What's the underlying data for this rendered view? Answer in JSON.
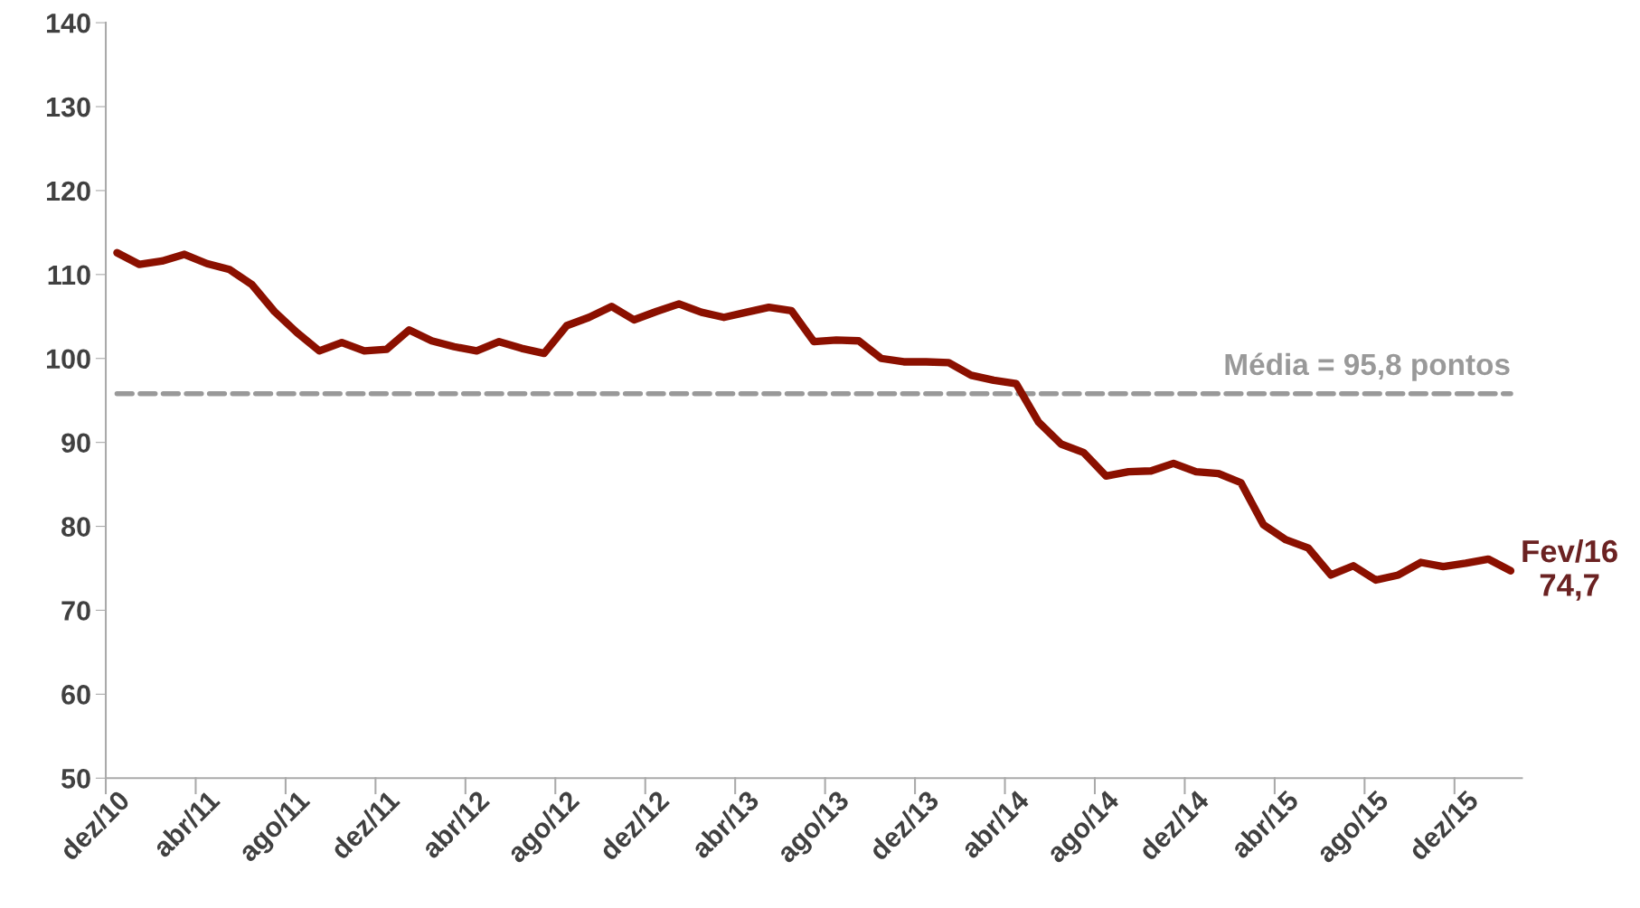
{
  "chart_data": {
    "type": "line",
    "categories": [
      "dez/10",
      null,
      null,
      null,
      "abr/11",
      null,
      null,
      null,
      "ago/11",
      null,
      null,
      null,
      "dez/11",
      null,
      null,
      null,
      "abr/12",
      null,
      null,
      null,
      "ago/12",
      null,
      null,
      null,
      "dez/12",
      null,
      null,
      null,
      "abr/13",
      null,
      null,
      null,
      "ago/13",
      null,
      null,
      null,
      "dez/13",
      null,
      null,
      null,
      "abr/14",
      null,
      null,
      null,
      "ago/14",
      null,
      null,
      null,
      "dez/14",
      null,
      null,
      null,
      "abr/15",
      null,
      null,
      null,
      "ago/15",
      null,
      null,
      null,
      "dez/15",
      null,
      null
    ],
    "series": [
      {
        "color": "#8b1000",
        "values": [
          112.6,
          111.2,
          111.6,
          112.4,
          111.3,
          110.6,
          108.8,
          105.6,
          103.1,
          100.9,
          101.9,
          100.9,
          101.1,
          103.4,
          102.1,
          101.4,
          100.9,
          102.0,
          101.2,
          100.6,
          103.9,
          104.9,
          106.2,
          104.6,
          105.6,
          106.5,
          105.5,
          104.9,
          105.5,
          106.1,
          105.7,
          102.0,
          102.2,
          102.1,
          100.0,
          99.6,
          99.6,
          99.5,
          98.0,
          97.4,
          97.0,
          92.4,
          89.8,
          88.8,
          86.0,
          86.5,
          86.6,
          87.5,
          86.5,
          86.3,
          85.2,
          80.2,
          78.4,
          77.4,
          74.2,
          75.3,
          73.6,
          74.2,
          75.7,
          75.2,
          75.6,
          76.1,
          74.7
        ]
      }
    ],
    "ylim": [
      50,
      140
    ],
    "yticks": [
      50,
      60,
      70,
      80,
      90,
      100,
      110,
      120,
      130,
      140
    ],
    "grid": false,
    "legend": false,
    "marker": "none",
    "line_style": "solid",
    "ref_lines": [
      {
        "axis": "y",
        "value": 95.8,
        "label": "Média = 95,8 pontos",
        "color": "#999999",
        "line_style": "dashed"
      }
    ],
    "annotations": [
      "Fev/16\n74,7"
    ]
  }
}
